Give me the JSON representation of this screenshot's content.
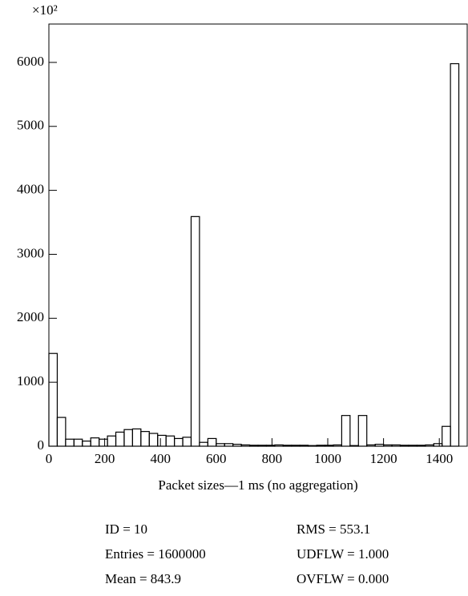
{
  "chart_data": {
    "type": "histogram",
    "y_unit_label": "×10²",
    "xlabel": "Packet sizes—1 ms (no aggregation)",
    "bins": [
      0,
      30,
      60,
      90,
      120,
      150,
      180,
      210,
      240,
      270,
      300,
      330,
      360,
      390,
      420,
      450,
      480,
      510,
      540,
      570,
      600,
      630,
      660,
      690,
      720,
      750,
      780,
      810,
      840,
      870,
      900,
      930,
      960,
      990,
      1020,
      1050,
      1080,
      1110,
      1140,
      1170,
      1200,
      1230,
      1260,
      1290,
      1320,
      1350,
      1380,
      1410,
      1440,
      1470,
      1500
    ],
    "values": [
      1450,
      450,
      110,
      110,
      80,
      130,
      110,
      160,
      220,
      260,
      270,
      230,
      200,
      170,
      160,
      120,
      140,
      3590,
      60,
      120,
      40,
      40,
      30,
      20,
      15,
      15,
      15,
      20,
      15,
      15,
      15,
      10,
      15,
      15,
      20,
      480,
      10,
      480,
      20,
      30,
      20,
      20,
      15,
      15,
      15,
      20,
      40,
      310,
      5980,
      0
    ],
    "xlim": [
      0,
      1500
    ],
    "ylim": [
      0,
      6600
    ],
    "xticks": [
      0,
      200,
      400,
      600,
      800,
      1000,
      1200,
      1400
    ],
    "yticks": [
      0,
      1000,
      2000,
      3000,
      4000,
      5000,
      6000
    ],
    "color": "#000000",
    "stats": [
      [
        "ID = 10",
        "RMS = 553.1"
      ],
      [
        "Entries = 1600000",
        "UDFLW = 1.000"
      ],
      [
        "Mean = 843.9",
        "OVFLW = 0.000"
      ]
    ]
  }
}
